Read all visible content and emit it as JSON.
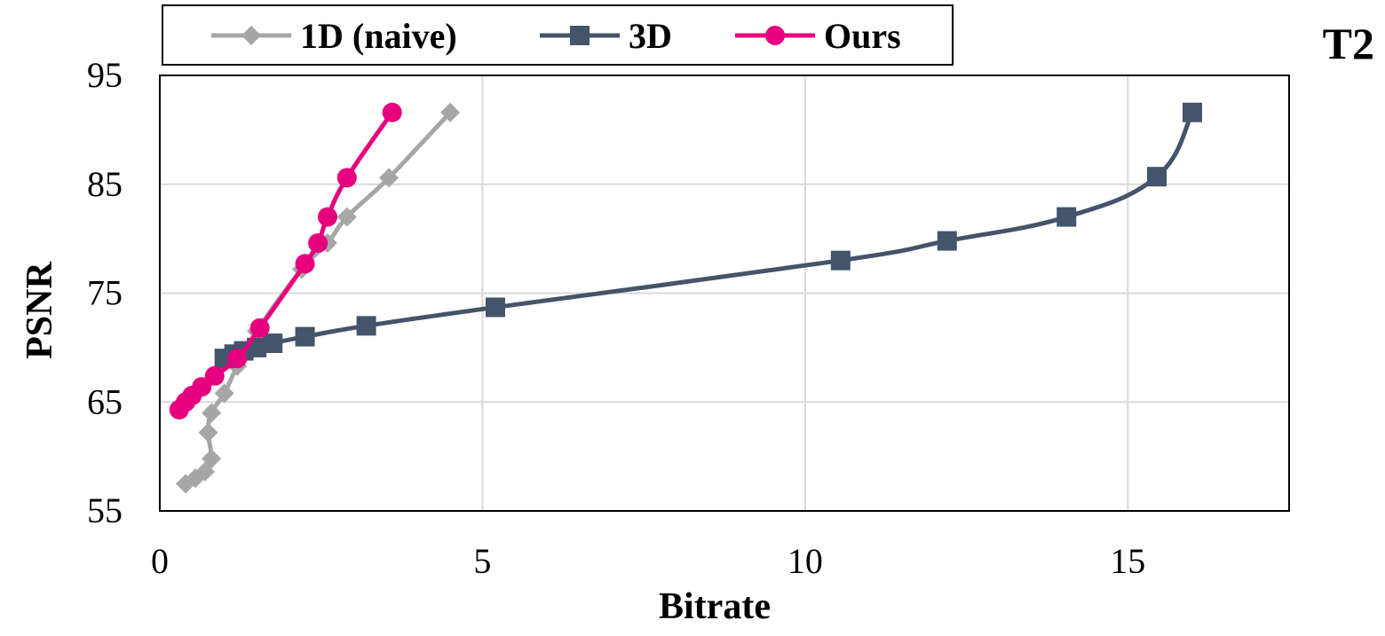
{
  "chart_data": {
    "type": "line",
    "panel_label": "T2",
    "xlabel": "Bitrate",
    "ylabel": "PSNR",
    "xlim": [
      0,
      17.5
    ],
    "ylim": [
      55,
      95
    ],
    "xticks": [
      0,
      5,
      10,
      15
    ],
    "yticks": [
      55,
      65,
      75,
      85,
      95
    ],
    "grid": true,
    "legend_position": "top-left",
    "series": [
      {
        "name": "1D (naive)",
        "color": "#a6a6a6",
        "marker": "diamond",
        "x": [
          0.4,
          0.55,
          0.7,
          0.8,
          0.75,
          0.8,
          1.0,
          1.2,
          1.5,
          2.2,
          2.6,
          2.9,
          3.55,
          4.5
        ],
        "y": [
          57.5,
          58.0,
          58.6,
          59.8,
          62.2,
          64.0,
          65.8,
          68.3,
          71.5,
          77.2,
          79.6,
          82.0,
          85.6,
          91.6
        ]
      },
      {
        "name": "3D",
        "color": "#44546a",
        "marker": "square",
        "x": [
          1.0,
          1.15,
          1.3,
          1.5,
          1.75,
          2.25,
          3.2,
          5.2,
          10.55,
          12.2,
          14.05,
          15.45,
          16.0
        ],
        "y": [
          69.0,
          69.4,
          69.7,
          70.0,
          70.4,
          71.0,
          72.0,
          73.7,
          78.0,
          79.8,
          82.0,
          85.7,
          91.6
        ]
      },
      {
        "name": "Ours",
        "color": "#e6007e",
        "marker": "circle",
        "x": [
          0.3,
          0.4,
          0.5,
          0.65,
          0.85,
          1.2,
          1.55,
          2.25,
          2.45,
          2.6,
          2.9,
          3.6
        ],
        "y": [
          64.3,
          65.0,
          65.6,
          66.4,
          67.4,
          69.0,
          71.8,
          77.7,
          79.6,
          82.0,
          85.6,
          91.6
        ]
      }
    ]
  }
}
